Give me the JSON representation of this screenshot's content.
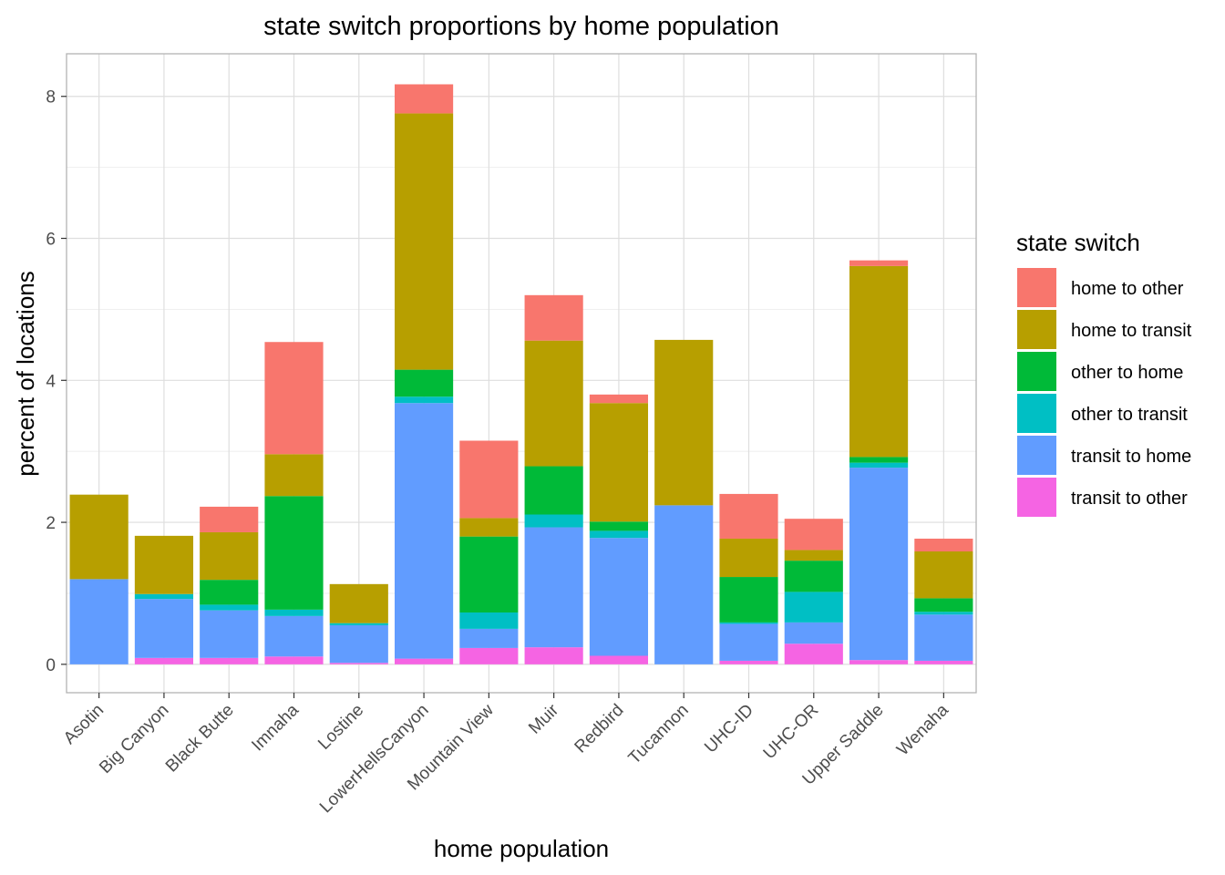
{
  "chart_data": {
    "type": "bar",
    "stacked": true,
    "title": "state switch proportions by home population",
    "xlabel": "home population",
    "ylabel": "percent of locations",
    "ylim": [
      -0.4,
      8.6
    ],
    "yticks": [
      0,
      2,
      4,
      6,
      8
    ],
    "grid": true,
    "legend_position": "right",
    "legend_title": "state switch",
    "categories": [
      "Asotin",
      "Big Canyon",
      "Black Butte",
      "Imnaha",
      "Lostine",
      "LowerHellsCanyon",
      "Mountain View",
      "Muir",
      "Redbird",
      "Tucannon",
      "UHC-ID",
      "UHC-OR",
      "Upper Saddle",
      "Wenaha"
    ],
    "series": [
      {
        "name": "transit to other",
        "color": "#F564E3",
        "values": [
          0,
          0.09,
          0.09,
          0.11,
          0.02,
          0.08,
          0.23,
          0.24,
          0.12,
          0,
          0.05,
          0.29,
          0.06,
          0.05
        ]
      },
      {
        "name": "transit to home",
        "color": "#619CFF",
        "values": [
          1.2,
          0.83,
          0.67,
          0.57,
          0.53,
          3.6,
          0.27,
          1.69,
          1.66,
          2.24,
          0.52,
          0.3,
          2.71,
          0.65
        ]
      },
      {
        "name": "other to transit",
        "color": "#00BFC4",
        "values": [
          0,
          0.07,
          0.08,
          0.09,
          0.03,
          0.09,
          0.23,
          0.18,
          0.1,
          0,
          0.02,
          0.43,
          0.07,
          0.04
        ]
      },
      {
        "name": "other to home",
        "color": "#00BA38",
        "values": [
          0,
          0,
          0.35,
          1.6,
          0,
          0.38,
          1.07,
          0.68,
          0.13,
          0,
          0.64,
          0.44,
          0.08,
          0.19
        ]
      },
      {
        "name": "home to transit",
        "color": "#B79F00",
        "values": [
          1.19,
          0.82,
          0.67,
          0.59,
          0.55,
          3.61,
          0.26,
          1.77,
          1.67,
          2.33,
          0.54,
          0.15,
          2.69,
          0.66
        ]
      },
      {
        "name": "home to other",
        "color": "#F8766D",
        "values": [
          0,
          0,
          0.36,
          1.58,
          0,
          0.41,
          1.09,
          0.64,
          0.12,
          0,
          0.63,
          0.44,
          0.08,
          0.18
        ]
      }
    ],
    "legend_order": [
      "home to other",
      "home to transit",
      "other to home",
      "other to transit",
      "transit to home",
      "transit to other"
    ]
  }
}
